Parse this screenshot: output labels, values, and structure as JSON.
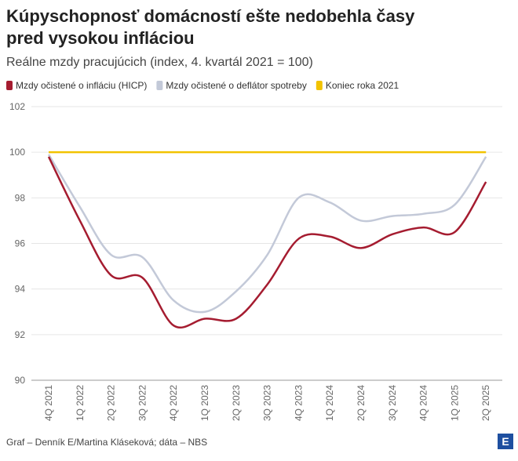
{
  "chart_data": {
    "type": "line",
    "title": "Kúpyschopnosť domácností ešte nedobehla časy pred vysokou infláciou",
    "subtitle": "Reálne mzdy pracujúcich (index, 4. kvartál 2021 = 100)",
    "categories": [
      "4Q 2021",
      "1Q 2022",
      "2Q 2022",
      "3Q 2022",
      "4Q 2022",
      "1Q 2023",
      "2Q 2023",
      "3Q 2023",
      "4Q 2023",
      "1Q 2024",
      "2Q 2024",
      "3Q 2024",
      "4Q 2024",
      "1Q 2025",
      "2Q 2025"
    ],
    "series": [
      {
        "name": "Mzdy očistené o infláciu (HICP)",
        "color": "#a51c30",
        "values": [
          99.8,
          97.0,
          94.6,
          94.5,
          92.4,
          92.7,
          92.7,
          94.2,
          96.2,
          96.3,
          95.8,
          96.4,
          96.7,
          96.5,
          98.7
        ]
      },
      {
        "name": "Mzdy očistené o deflátor spotreby",
        "color": "#c3c9d8",
        "values": [
          99.9,
          97.6,
          95.5,
          95.4,
          93.5,
          93.0,
          93.9,
          95.5,
          98.0,
          97.8,
          97.0,
          97.2,
          97.3,
          97.7,
          99.8
        ]
      },
      {
        "name": "Koniec roka 2021",
        "color": "#f2c300",
        "values": [
          100,
          100,
          100,
          100,
          100,
          100,
          100,
          100,
          100,
          100,
          100,
          100,
          100,
          100,
          100
        ]
      }
    ],
    "ylim": [
      90,
      102
    ],
    "yticks": [
      90,
      92,
      94,
      96,
      98,
      100,
      102
    ],
    "grid": true,
    "source": "Graf – Denník E/Martina Kláseková; dáta – NBS",
    "logo": "E"
  }
}
